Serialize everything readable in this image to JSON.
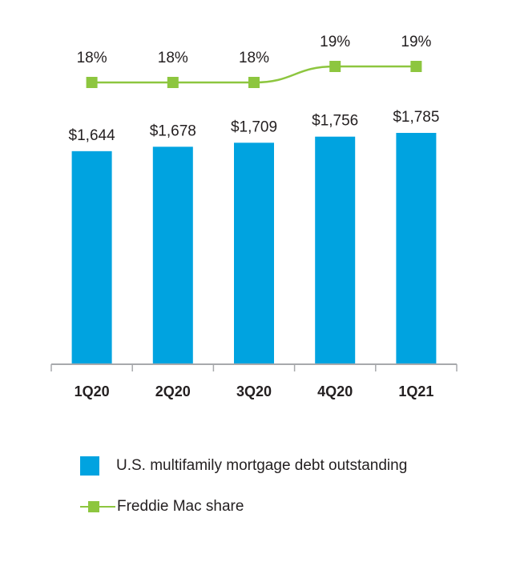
{
  "chart_data": {
    "type": "bar",
    "categories": [
      "1Q20",
      "2Q20",
      "3Q20",
      "4Q20",
      "1Q21"
    ],
    "series": [
      {
        "name": "U.S. multifamily mortgage debt outstanding",
        "type": "bar",
        "values": [
          1644,
          1678,
          1709,
          1756,
          1785
        ],
        "labels": [
          "$1,644",
          "$1,678",
          "$1,709",
          "$1,756",
          "$1,785"
        ],
        "color": "#00a3e0"
      },
      {
        "name": "Freddie Mac share",
        "type": "line",
        "values": [
          18,
          18,
          18,
          19,
          19
        ],
        "labels": [
          "18%",
          "18%",
          "18%",
          "19%",
          "19%"
        ],
        "color": "#8dc63f"
      }
    ],
    "title": "",
    "xlabel": "",
    "ylabel": "",
    "ylim": [
      0,
      1785
    ],
    "grid": false,
    "legend_position": "bottom-left"
  },
  "legend": {
    "bar_label": "U.S. multifamily mortgage debt outstanding",
    "line_label": "Freddie Mac share"
  },
  "colors": {
    "bar": "#00a3e0",
    "line": "#8dc63f",
    "axis": "#a7a9ac",
    "text": "#231f20"
  }
}
